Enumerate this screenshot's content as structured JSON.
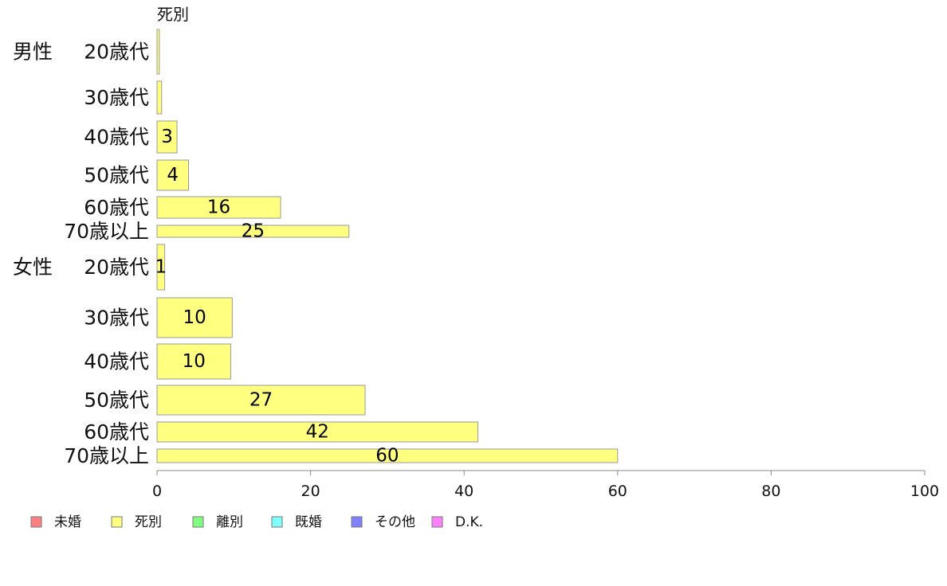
{
  "chart_data": {
    "type": "bar",
    "orientation": "horizontal",
    "stacked": true,
    "column_title": "死別",
    "groups": [
      {
        "label": "男性",
        "start": 0,
        "count": 6
      },
      {
        "label": "女性",
        "start": 6,
        "count": 6
      }
    ],
    "categories": [
      "20歳代",
      "30歳代",
      "40歳代",
      "50歳代",
      "60歳代",
      "70歳以上",
      "20歳代",
      "30歳代",
      "40歳代",
      "50歳代",
      "60歳代",
      "70歳以上"
    ],
    "series": [
      {
        "name": "死別",
        "color": "#ffff80",
        "values": [
          0.3,
          0.6,
          2.6,
          4.1,
          16.1,
          25.0,
          1.0,
          9.8,
          9.6,
          27.1,
          41.8,
          60.0
        ]
      }
    ],
    "data_labels": [
      "",
      "",
      "3",
      "4",
      "16",
      "25",
      "1",
      "10",
      "10",
      "27",
      "42",
      "60"
    ],
    "xlim": [
      0,
      100
    ],
    "xticks": [
      0,
      20,
      40,
      60,
      80,
      100
    ],
    "grid": false,
    "legend": {
      "position": "bottom-left",
      "items": [
        {
          "name": "未婚",
          "color": "#ff8080"
        },
        {
          "name": "死別",
          "color": "#ffff80"
        },
        {
          "name": "離別",
          "color": "#80ff80"
        },
        {
          "name": "既婚",
          "color": "#80ffff"
        },
        {
          "name": "その他",
          "color": "#8080ff"
        },
        {
          "name": "D.K.",
          "color": "#ff80ff"
        }
      ]
    },
    "bar_edge_color": "#999999",
    "axis_color": "#888888"
  }
}
